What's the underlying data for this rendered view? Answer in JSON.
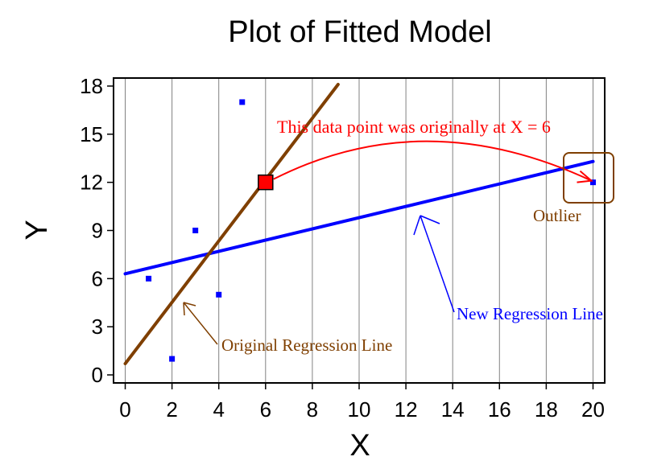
{
  "chart_data": {
    "type": "scatter",
    "title": "Plot of Fitted Model",
    "xlabel": "X",
    "ylabel": "Y",
    "xlim": [
      -0.5,
      20.5
    ],
    "ylim": [
      -0.5,
      18.5
    ],
    "xticks": [
      0,
      2,
      4,
      6,
      8,
      10,
      12,
      14,
      16,
      18,
      20
    ],
    "yticks": [
      0,
      3,
      6,
      9,
      12,
      15,
      18
    ],
    "grid": "vertical",
    "colors": {
      "points": "#0000ff",
      "new_line": "#0000ff",
      "original_line": "#7f3f00",
      "highlight_fill": "#ff0000",
      "arrow": "#ff0000",
      "annotation_original": "#7f3f00",
      "annotation_new": "#0000ff",
      "annotation_moved": "#ff0000"
    },
    "points": [
      {
        "x": 1,
        "y": 6
      },
      {
        "x": 2,
        "y": 1
      },
      {
        "x": 3,
        "y": 9
      },
      {
        "x": 4,
        "y": 5
      },
      {
        "x": 5,
        "y": 17
      },
      {
        "x": 20,
        "y": 12
      }
    ],
    "original_point": {
      "x": 6,
      "y": 12
    },
    "original_regression_line": {
      "x": [
        0,
        9.1
      ],
      "y": [
        0.7,
        18.1
      ]
    },
    "new_regression_line": {
      "x": [
        0,
        20
      ],
      "y": [
        6.3,
        13.3
      ]
    },
    "annotations": {
      "moved": "This data point was originally at X = 6",
      "outlier": "Outlier",
      "original_line": "Original Regression Line",
      "new_line": "New Regression Line"
    }
  }
}
